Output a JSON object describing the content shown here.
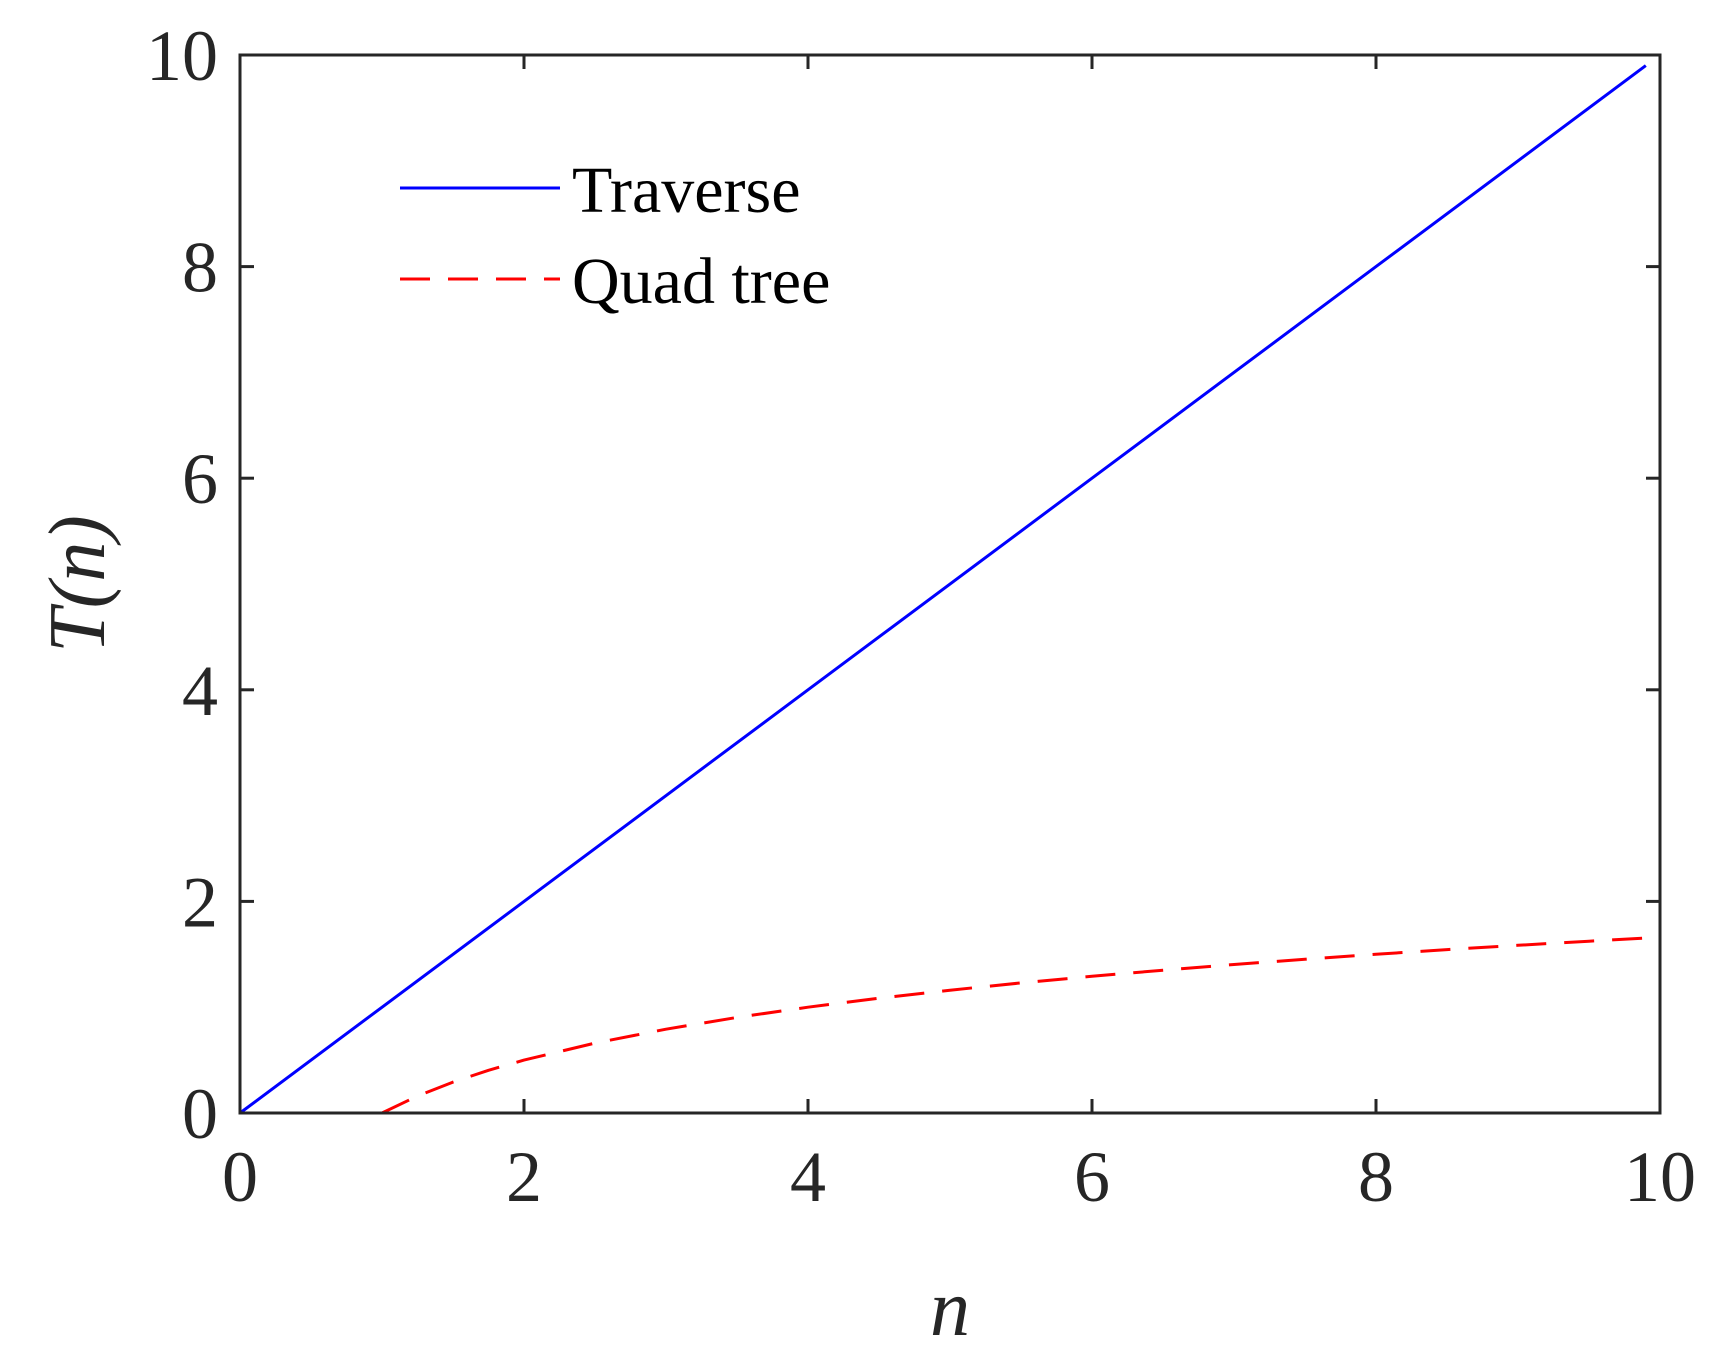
{
  "chart_data": {
    "type": "line",
    "xlabel": "n",
    "ylabel_main": "T",
    "ylabel_arg": "(n)",
    "xlim": [
      0,
      10
    ],
    "ylim": [
      0,
      10
    ],
    "xticks": [
      "0",
      "2",
      "4",
      "6",
      "8",
      "10"
    ],
    "yticks": [
      "0",
      "2",
      "4",
      "6",
      "8",
      "10"
    ],
    "grid": false,
    "legend_position": "top-left",
    "series": [
      {
        "name": "Traverse",
        "color": "#0000ff",
        "style": "solid",
        "x": [
          0,
          2,
          4,
          6,
          8,
          9.9
        ],
        "y": [
          0,
          2,
          4,
          6,
          8,
          9.9
        ]
      },
      {
        "name": "Quad tree",
        "color": "#ff0000",
        "style": "dashed",
        "x": [
          1,
          1.25,
          1.5,
          1.75,
          2,
          2.5,
          3,
          3.5,
          4,
          4.5,
          5,
          5.5,
          6,
          6.5,
          7,
          7.5,
          8,
          8.5,
          9,
          9.5,
          10
        ],
        "y": [
          0,
          0.161,
          0.292,
          0.404,
          0.5,
          0.661,
          0.792,
          0.904,
          1.0,
          1.085,
          1.161,
          1.23,
          1.292,
          1.35,
          1.404,
          1.453,
          1.5,
          1.544,
          1.585,
          1.624,
          1.661
        ]
      }
    ]
  }
}
